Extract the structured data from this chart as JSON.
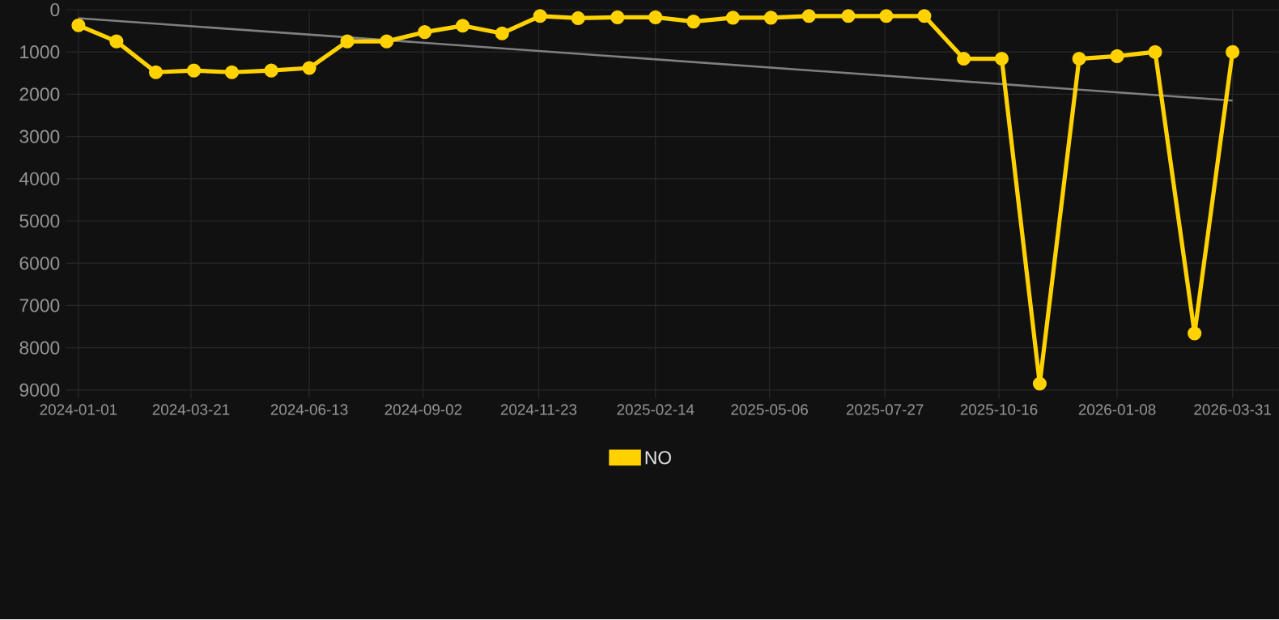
{
  "chart_data": {
    "type": "line",
    "x": [
      "2024-01-01",
      "2024-01-28",
      "2024-02-25",
      "2024-03-23",
      "2024-04-19",
      "2024-05-17",
      "2024-06-13",
      "2024-07-10",
      "2024-08-07",
      "2024-09-03",
      "2024-09-30",
      "2024-10-28",
      "2024-11-24",
      "2024-12-21",
      "2025-01-18",
      "2025-02-14",
      "2025-03-13",
      "2025-04-10",
      "2025-05-07",
      "2025-06-03",
      "2025-07-01",
      "2025-07-28",
      "2025-08-24",
      "2025-09-21",
      "2025-10-18",
      "2025-11-14",
      "2025-12-12",
      "2026-01-08",
      "2026-02-04",
      "2026-03-04",
      "2026-03-31"
    ],
    "series": [
      {
        "name": "NO",
        "color": "#ffd200",
        "values": [
          370,
          750,
          1480,
          1440,
          1480,
          1440,
          1380,
          750,
          750,
          530,
          380,
          560,
          150,
          200,
          180,
          180,
          280,
          190,
          190,
          150,
          150,
          150,
          150,
          1160,
          1160,
          8850,
          1160,
          1100,
          1000,
          7660,
          1000
        ]
      },
      {
        "type": "line",
        "color": "#808080",
        "marker": "none",
        "x": [
          "2024-01-01",
          "2026-03-31"
        ],
        "values": [
          200,
          2150
        ]
      }
    ],
    "xlim": [
      "2023-12-23",
      "2026-05-03"
    ],
    "xticks": [
      "2024-01-01",
      "2024-03-21",
      "2024-06-13",
      "2024-09-02",
      "2024-11-23",
      "2025-02-14",
      "2025-05-06",
      "2025-07-27",
      "2025-10-16",
      "2026-01-08",
      "2026-03-31"
    ],
    "ylim": [
      9200,
      0
    ],
    "yticks": [
      0,
      1000,
      2000,
      3000,
      4000,
      5000,
      6000,
      7000,
      8000,
      9000
    ],
    "grid": true,
    "legend": "bottom",
    "marker": "circle",
    "line_style": "solid"
  }
}
